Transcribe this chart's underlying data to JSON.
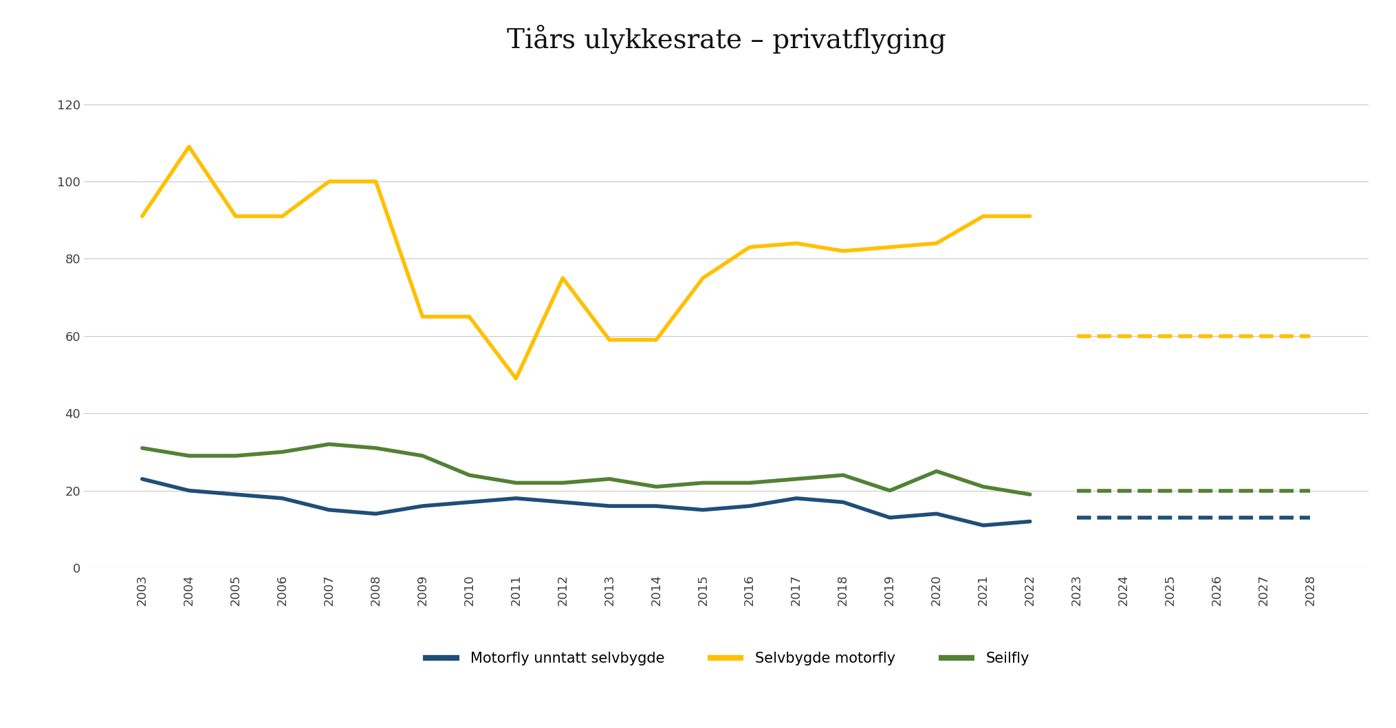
{
  "title": "Tiårs ulykkesrate – privatflyging",
  "title_fontsize": 28,
  "background_color": "#ffffff",
  "motorfly_years": [
    2003,
    2004,
    2005,
    2006,
    2007,
    2008,
    2009,
    2010,
    2011,
    2012,
    2013,
    2014,
    2015,
    2016,
    2017,
    2018,
    2019,
    2020,
    2021,
    2022
  ],
  "motorfly_values": [
    23,
    20,
    19,
    18,
    15,
    14,
    16,
    17,
    18,
    17,
    16,
    16,
    15,
    16,
    18,
    17,
    13,
    14,
    11,
    12
  ],
  "motorfly_color": "#1f4e79",
  "selvbygde_years": [
    2003,
    2004,
    2005,
    2006,
    2007,
    2008,
    2009,
    2010,
    2011,
    2012,
    2013,
    2014,
    2015,
    2016,
    2017,
    2018,
    2019,
    2020,
    2021,
    2022
  ],
  "selvbygde_values": [
    91,
    109,
    91,
    91,
    100,
    100,
    65,
    65,
    49,
    75,
    59,
    59,
    75,
    83,
    84,
    82,
    83,
    84,
    91,
    91
  ],
  "selvbygde_color": "#ffc000",
  "seilfly_years": [
    2003,
    2004,
    2005,
    2006,
    2007,
    2008,
    2009,
    2010,
    2011,
    2012,
    2013,
    2014,
    2015,
    2016,
    2017,
    2018,
    2019,
    2020,
    2021,
    2022
  ],
  "seilfly_values": [
    31,
    29,
    29,
    30,
    32,
    31,
    29,
    24,
    22,
    22,
    23,
    21,
    22,
    22,
    23,
    24,
    20,
    25,
    21,
    19
  ],
  "seilfly_color": "#538135",
  "motorfly_target_years": [
    2022,
    2023,
    2024,
    2025,
    2026,
    2027,
    2028
  ],
  "motorfly_target_values": [
    13,
    13,
    13,
    13,
    13,
    13,
    13
  ],
  "selvbygde_target_years": [
    2022,
    2023,
    2024,
    2025,
    2026,
    2027,
    2028
  ],
  "selvbygde_target_values": [
    60,
    60,
    60,
    60,
    60,
    60,
    60
  ],
  "seilfly_target_years": [
    2022,
    2023,
    2024,
    2025,
    2026,
    2027,
    2028
  ],
  "seilfly_target_values": [
    20,
    20,
    20,
    20,
    20,
    20,
    20
  ],
  "ylim": [
    0,
    130
  ],
  "yticks": [
    0,
    20,
    40,
    60,
    80,
    100,
    120
  ],
  "legend_labels": [
    "Motorfly unntatt selvbygde",
    "Selvbygde motorfly",
    "Seilfly"
  ],
  "legend_colors": [
    "#1f4e79",
    "#ffc000",
    "#538135"
  ],
  "linewidth": 4.0,
  "dash_linewidth": 4.0,
  "grid_color": "#c8c8c8",
  "tick_fontsize": 13,
  "legend_fontsize": 15
}
